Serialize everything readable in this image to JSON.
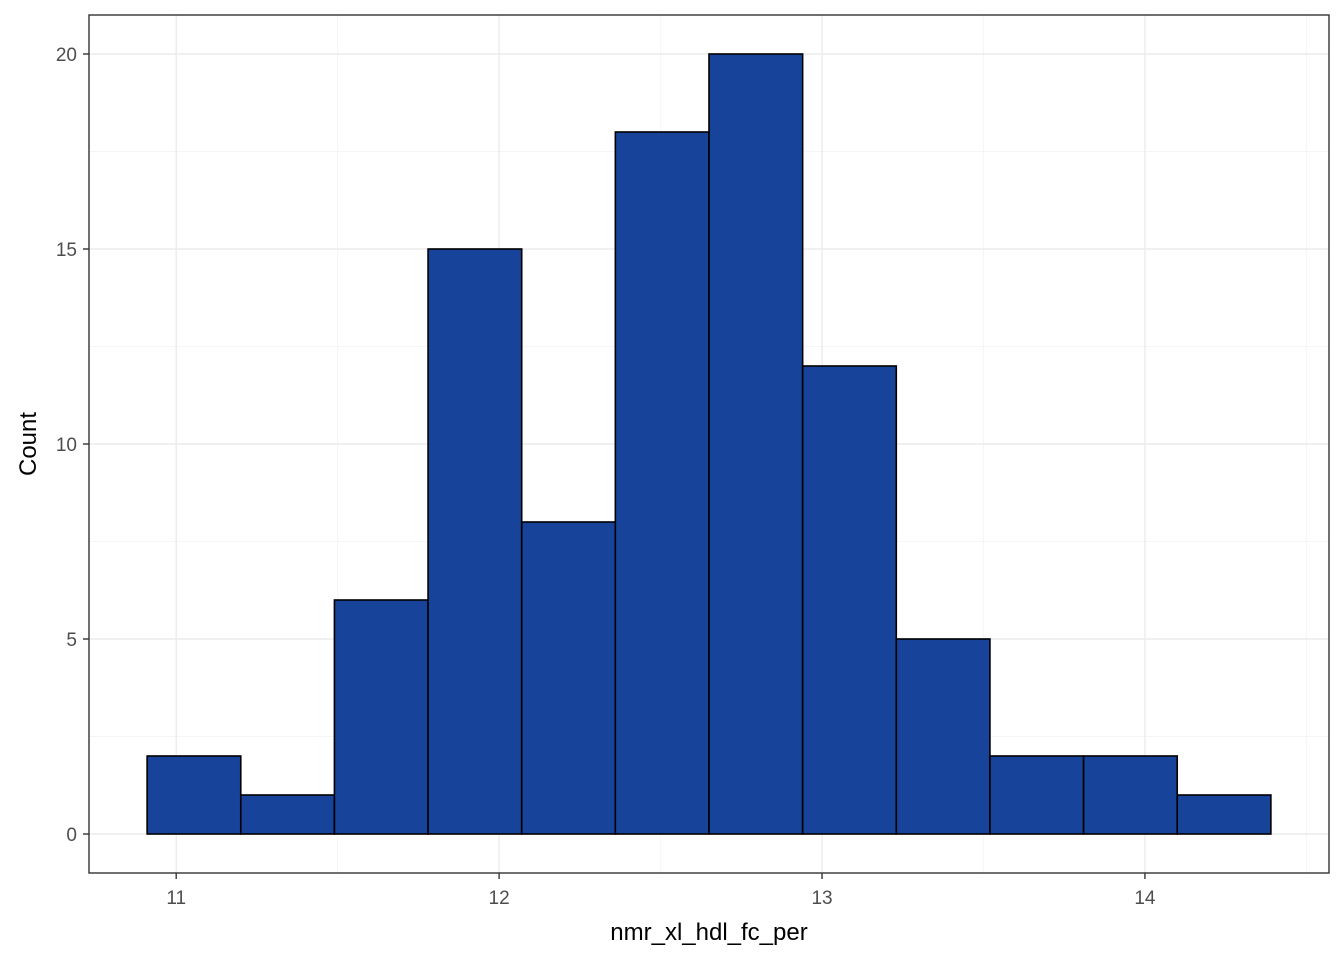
{
  "chart_data": {
    "type": "bar",
    "title": "",
    "xlabel": "nmr_xl_hdl_fc_per",
    "ylabel": "Count",
    "bins": [
      {
        "x0": 10.91,
        "x1": 11.2,
        "count": 2
      },
      {
        "x0": 11.2,
        "x1": 11.49,
        "count": 1
      },
      {
        "x0": 11.49,
        "x1": 11.78,
        "count": 6
      },
      {
        "x0": 11.78,
        "x1": 12.07,
        "count": 15
      },
      {
        "x0": 12.07,
        "x1": 12.36,
        "count": 8
      },
      {
        "x0": 12.36,
        "x1": 12.65,
        "count": 18
      },
      {
        "x0": 12.65,
        "x1": 12.94,
        "count": 20
      },
      {
        "x0": 12.94,
        "x1": 13.23,
        "count": 12
      },
      {
        "x0": 13.23,
        "x1": 13.52,
        "count": 5
      },
      {
        "x0": 13.52,
        "x1": 13.81,
        "count": 2
      },
      {
        "x0": 13.81,
        "x1": 14.1,
        "count": 2
      },
      {
        "x0": 14.1,
        "x1": 14.39,
        "count": 1
      }
    ],
    "xlim": [
      10.73,
      14.57
    ],
    "ylim": [
      -1,
      21
    ],
    "x_ticks": [
      11,
      12,
      13,
      14
    ],
    "x_tick_labels": [
      "11",
      "12",
      "13",
      "14"
    ],
    "y_ticks": [
      0,
      5,
      10,
      15,
      20
    ],
    "y_tick_labels": [
      "0",
      "5",
      "10",
      "15",
      "20"
    ],
    "grid": true,
    "legend": "none",
    "colors": {
      "bar_fill": "#18439a",
      "bar_stroke": "#000000",
      "grid_major": "#ebebeb",
      "grid_minor": "#f5f5f5",
      "panel_border": "#333333"
    }
  }
}
